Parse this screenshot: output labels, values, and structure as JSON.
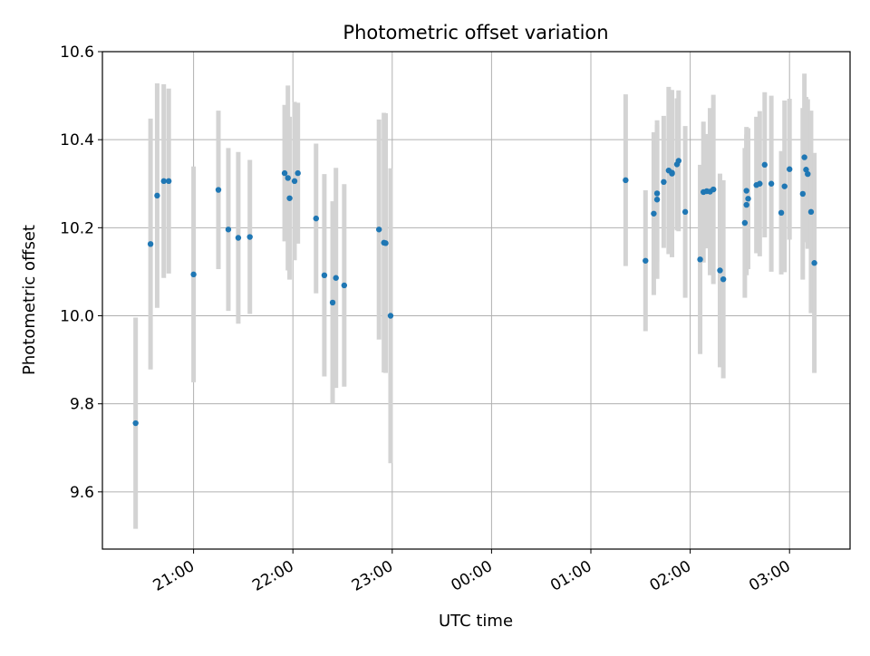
{
  "chart_data": {
    "type": "scatter",
    "title": "Photometric offset variation",
    "xlabel": "UTC time",
    "ylabel": "Photometric offset",
    "x_ticks": [
      "21:00",
      "22:00",
      "23:00",
      "00:00",
      "01:00",
      "02:00",
      "03:00"
    ],
    "y_ticks": [
      "9.6",
      "9.8",
      "10.0",
      "10.2",
      "10.4",
      "10.6"
    ],
    "ylim": [
      9.47,
      10.6
    ],
    "grid": true,
    "errorbar_color": "#d3d3d3",
    "marker_color": "#1f77b4",
    "series": [
      {
        "x": [
          "20:25",
          "20:34",
          "20:38",
          "20:42",
          "20:45",
          "21:00",
          "21:15",
          "21:21",
          "21:27",
          "21:34",
          "21:55",
          "21:57",
          "21:58",
          "22:01",
          "22:03",
          "22:14",
          "22:19",
          "22:24",
          "22:26",
          "22:31",
          "22:52",
          "22:55",
          "22:56",
          "22:59",
          "01:21",
          "01:33",
          "01:38",
          "01:40",
          "01:40",
          "01:44",
          "01:47",
          "01:49",
          "01:49",
          "01:52",
          "01:53",
          "01:57",
          "02:06",
          "02:08",
          "02:10",
          "02:12",
          "02:14",
          "02:18",
          "02:20",
          "02:33",
          "02:34",
          "02:34",
          "02:35",
          "02:40",
          "02:42",
          "02:45",
          "02:49",
          "02:55",
          "02:57",
          "03:00",
          "03:08",
          "03:09",
          "03:10",
          "03:11",
          "03:13",
          "03:15"
        ],
        "y": [
          9.756,
          10.163,
          10.273,
          10.306,
          10.306,
          10.094,
          10.286,
          10.196,
          10.177,
          10.179,
          10.324,
          10.313,
          10.267,
          10.306,
          10.324,
          10.221,
          10.092,
          10.03,
          10.086,
          10.069,
          10.196,
          10.166,
          10.165,
          10.0,
          10.308,
          10.125,
          10.232,
          10.278,
          10.264,
          10.304,
          10.33,
          10.323,
          10.325,
          10.344,
          10.352,
          10.236,
          10.128,
          10.281,
          10.283,
          10.282,
          10.287,
          10.103,
          10.083,
          10.211,
          10.284,
          10.252,
          10.266,
          10.297,
          10.3,
          10.343,
          10.3,
          10.234,
          10.294,
          10.333,
          10.277,
          10.36,
          10.332,
          10.322,
          10.236,
          10.12
        ],
        "yerr": [
          0.24,
          0.285,
          0.255,
          0.22,
          0.21,
          0.245,
          0.18,
          0.185,
          0.195,
          0.175,
          0.155,
          0.21,
          0.185,
          0.18,
          0.16,
          0.17,
          0.23,
          0.23,
          0.25,
          0.23,
          0.25,
          0.295,
          0.295,
          0.335,
          0.195,
          0.16,
          0.185,
          0.155,
          0.18,
          0.15,
          0.19,
          0.19,
          0.16,
          0.15,
          0.16,
          0.195,
          0.215,
          0.16,
          0.13,
          0.19,
          0.215,
          0.22,
          0.225,
          0.17,
          0.145,
          0.16,
          0.16,
          0.155,
          0.165,
          0.165,
          0.2,
          0.14,
          0.195,
          0.16,
          0.195,
          0.19,
          0.165,
          0.17,
          0.23,
          0.25
        ]
      }
    ]
  }
}
